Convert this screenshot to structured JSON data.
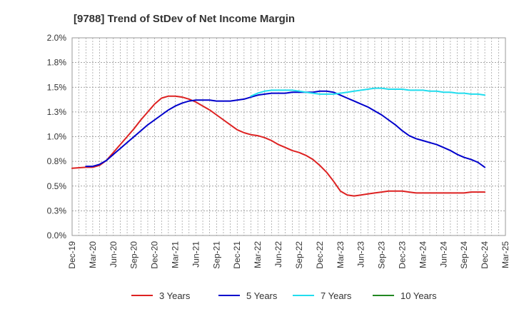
{
  "chart_data": {
    "type": "line",
    "title": "[9788]  Trend of StDev of Net Income Margin",
    "xlabel": "",
    "ylabel": "",
    "x_ticks": [
      "Dec-19",
      "Mar-20",
      "Jun-20",
      "Sep-20",
      "Dec-20",
      "Mar-21",
      "Jun-21",
      "Sep-21",
      "Dec-21",
      "Mar-22",
      "Jun-22",
      "Sep-22",
      "Dec-22",
      "Mar-23",
      "Jun-23",
      "Sep-23",
      "Dec-23",
      "Mar-24",
      "Jun-24",
      "Sep-24",
      "Dec-24",
      "Mar-25"
    ],
    "y_ticks": [
      "0.0%",
      "0.3%",
      "0.5%",
      "0.8%",
      "1.0%",
      "1.3%",
      "1.5%",
      "1.8%",
      "2.0%"
    ],
    "ylim": [
      0,
      2.0
    ],
    "grid": true,
    "legend_position": "bottom",
    "series": [
      {
        "name": "3 Years",
        "color": "#dd2222",
        "values": [
          [
            "Dec-19",
            0.68
          ],
          [
            "Feb-20",
            0.69
          ],
          [
            "Mar-20",
            0.69
          ],
          [
            "Apr-20",
            0.71
          ],
          [
            "May-20",
            0.76
          ],
          [
            "Jun-20",
            0.84
          ],
          [
            "Jul-20",
            0.92
          ],
          [
            "Aug-20",
            1.0
          ],
          [
            "Sep-20",
            1.08
          ],
          [
            "Oct-20",
            1.17
          ],
          [
            "Nov-20",
            1.25
          ],
          [
            "Dec-20",
            1.33
          ],
          [
            "Jan-21",
            1.39
          ],
          [
            "Feb-21",
            1.41
          ],
          [
            "Mar-21",
            1.41
          ],
          [
            "Apr-21",
            1.4
          ],
          [
            "May-21",
            1.38
          ],
          [
            "Jun-21",
            1.35
          ],
          [
            "Jul-21",
            1.31
          ],
          [
            "Aug-21",
            1.27
          ],
          [
            "Sep-21",
            1.22
          ],
          [
            "Oct-21",
            1.17
          ],
          [
            "Nov-21",
            1.12
          ],
          [
            "Dec-21",
            1.07
          ],
          [
            "Jan-22",
            1.04
          ],
          [
            "Feb-22",
            1.02
          ],
          [
            "Mar-22",
            1.01
          ],
          [
            "Apr-22",
            0.99
          ],
          [
            "May-22",
            0.96
          ],
          [
            "Jun-22",
            0.92
          ],
          [
            "Jul-22",
            0.89
          ],
          [
            "Aug-22",
            0.86
          ],
          [
            "Sep-22",
            0.84
          ],
          [
            "Oct-22",
            0.81
          ],
          [
            "Nov-22",
            0.77
          ],
          [
            "Dec-22",
            0.71
          ],
          [
            "Jan-23",
            0.64
          ],
          [
            "Feb-23",
            0.55
          ],
          [
            "Mar-23",
            0.45
          ],
          [
            "Apr-23",
            0.41
          ],
          [
            "May-23",
            0.4
          ],
          [
            "Jun-23",
            0.41
          ],
          [
            "Jul-23",
            0.42
          ],
          [
            "Aug-23",
            0.43
          ],
          [
            "Sep-23",
            0.44
          ],
          [
            "Oct-23",
            0.45
          ],
          [
            "Nov-23",
            0.45
          ],
          [
            "Dec-23",
            0.45
          ],
          [
            "Jan-24",
            0.44
          ],
          [
            "Feb-24",
            0.43
          ],
          [
            "Mar-24",
            0.43
          ],
          [
            "Apr-24",
            0.43
          ],
          [
            "May-24",
            0.43
          ],
          [
            "Jun-24",
            0.43
          ],
          [
            "Jul-24",
            0.43
          ],
          [
            "Aug-24",
            0.43
          ],
          [
            "Sep-24",
            0.43
          ],
          [
            "Oct-24",
            0.44
          ],
          [
            "Nov-24",
            0.44
          ],
          [
            "Dec-24",
            0.44
          ]
        ]
      },
      {
        "name": "5 Years",
        "color": "#0000cc",
        "values": [
          [
            "Feb-20",
            0.7
          ],
          [
            "Mar-20",
            0.7
          ],
          [
            "Apr-20",
            0.72
          ],
          [
            "May-20",
            0.76
          ],
          [
            "Jun-20",
            0.82
          ],
          [
            "Jul-20",
            0.88
          ],
          [
            "Aug-20",
            0.94
          ],
          [
            "Sep-20",
            1.0
          ],
          [
            "Oct-20",
            1.06
          ],
          [
            "Nov-20",
            1.12
          ],
          [
            "Dec-20",
            1.17
          ],
          [
            "Jan-21",
            1.22
          ],
          [
            "Feb-21",
            1.27
          ],
          [
            "Mar-21",
            1.31
          ],
          [
            "Apr-21",
            1.34
          ],
          [
            "May-21",
            1.36
          ],
          [
            "Jun-21",
            1.37
          ],
          [
            "Jul-21",
            1.37
          ],
          [
            "Aug-21",
            1.37
          ],
          [
            "Sep-21",
            1.36
          ],
          [
            "Oct-21",
            1.36
          ],
          [
            "Nov-21",
            1.36
          ],
          [
            "Dec-21",
            1.37
          ],
          [
            "Jan-22",
            1.38
          ],
          [
            "Feb-22",
            1.4
          ],
          [
            "Mar-22",
            1.42
          ],
          [
            "Apr-22",
            1.43
          ],
          [
            "May-22",
            1.44
          ],
          [
            "Jun-22",
            1.44
          ],
          [
            "Jul-22",
            1.44
          ],
          [
            "Aug-22",
            1.45
          ],
          [
            "Sep-22",
            1.45
          ],
          [
            "Oct-22",
            1.45
          ],
          [
            "Nov-22",
            1.45
          ],
          [
            "Dec-22",
            1.46
          ],
          [
            "Jan-23",
            1.46
          ],
          [
            "Feb-23",
            1.45
          ],
          [
            "Mar-23",
            1.42
          ],
          [
            "Apr-23",
            1.39
          ],
          [
            "May-23",
            1.36
          ],
          [
            "Jun-23",
            1.33
          ],
          [
            "Jul-23",
            1.3
          ],
          [
            "Aug-23",
            1.26
          ],
          [
            "Sep-23",
            1.22
          ],
          [
            "Oct-23",
            1.17
          ],
          [
            "Nov-23",
            1.12
          ],
          [
            "Dec-23",
            1.06
          ],
          [
            "Jan-24",
            1.01
          ],
          [
            "Feb-24",
            0.98
          ],
          [
            "Mar-24",
            0.96
          ],
          [
            "Apr-24",
            0.94
          ],
          [
            "May-24",
            0.92
          ],
          [
            "Jun-24",
            0.89
          ],
          [
            "Jul-24",
            0.86
          ],
          [
            "Aug-24",
            0.82
          ],
          [
            "Sep-24",
            0.79
          ],
          [
            "Oct-24",
            0.77
          ],
          [
            "Nov-24",
            0.74
          ],
          [
            "Dec-24",
            0.69
          ]
        ]
      },
      {
        "name": "7 Years",
        "color": "#22ddee",
        "values": [
          [
            "Feb-22",
            1.41
          ],
          [
            "Mar-22",
            1.44
          ],
          [
            "Apr-22",
            1.46
          ],
          [
            "May-22",
            1.47
          ],
          [
            "Jun-22",
            1.47
          ],
          [
            "Jul-22",
            1.47
          ],
          [
            "Aug-22",
            1.47
          ],
          [
            "Sep-22",
            1.46
          ],
          [
            "Oct-22",
            1.45
          ],
          [
            "Nov-22",
            1.44
          ],
          [
            "Dec-22",
            1.43
          ],
          [
            "Jan-23",
            1.43
          ],
          [
            "Feb-23",
            1.43
          ],
          [
            "Mar-23",
            1.44
          ],
          [
            "Apr-23",
            1.45
          ],
          [
            "May-23",
            1.46
          ],
          [
            "Jun-23",
            1.47
          ],
          [
            "Jul-23",
            1.48
          ],
          [
            "Aug-23",
            1.49
          ],
          [
            "Sep-23",
            1.49
          ],
          [
            "Oct-23",
            1.48
          ],
          [
            "Nov-23",
            1.48
          ],
          [
            "Dec-23",
            1.48
          ],
          [
            "Jan-24",
            1.47
          ],
          [
            "Feb-24",
            1.47
          ],
          [
            "Mar-24",
            1.47
          ],
          [
            "Apr-24",
            1.46
          ],
          [
            "May-24",
            1.46
          ],
          [
            "Jun-24",
            1.45
          ],
          [
            "Jul-24",
            1.45
          ],
          [
            "Aug-24",
            1.44
          ],
          [
            "Sep-24",
            1.44
          ],
          [
            "Oct-24",
            1.43
          ],
          [
            "Nov-24",
            1.43
          ],
          [
            "Dec-24",
            1.42
          ]
        ]
      },
      {
        "name": "10 Years",
        "color": "#228822",
        "values": []
      }
    ]
  }
}
